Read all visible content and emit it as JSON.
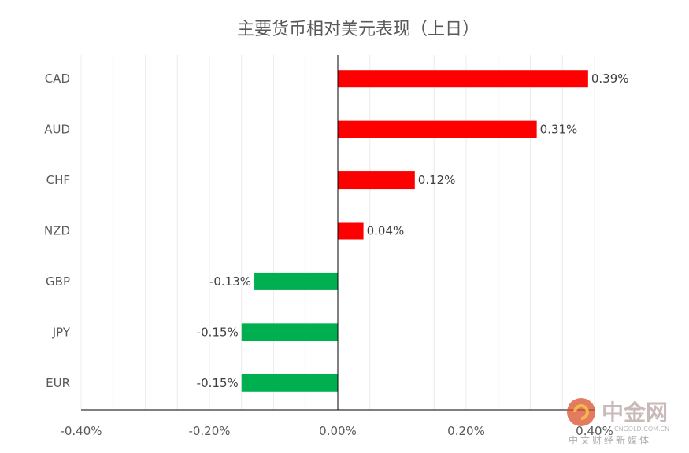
{
  "chart_data": {
    "type": "bar",
    "orientation": "horizontal",
    "title": "主要货币相对美元表现（上日）",
    "categories": [
      "CAD",
      "AUD",
      "CHF",
      "NZD",
      "GBP",
      "JPY",
      "EUR"
    ],
    "values": [
      0.39,
      0.31,
      0.12,
      0.04,
      -0.13,
      -0.15,
      -0.15
    ],
    "value_labels": [
      "0.39%",
      "0.31%",
      "0.12%",
      "0.04%",
      "-0.13%",
      "-0.15%",
      "-0.15%"
    ],
    "xlim": [
      -0.4,
      0.4
    ],
    "xticks": [
      -0.4,
      -0.2,
      0.0,
      0.2,
      0.4
    ],
    "xtick_labels": [
      "-0.40%",
      "-0.20%",
      "0.00%",
      "0.20%",
      "0.40%"
    ],
    "xlabel": "",
    "ylabel": "",
    "grid": true,
    "legend": "none",
    "colors": {
      "positive": "#ff0000",
      "negative": "#00b050"
    }
  },
  "watermark": {
    "logo_text": "中金网",
    "domain_text": "CNGOLD.COM.CN",
    "tagline": "中文财经新媒体",
    "colors": {
      "disc": "#d94f2b",
      "text": "#c9b9b9"
    }
  }
}
